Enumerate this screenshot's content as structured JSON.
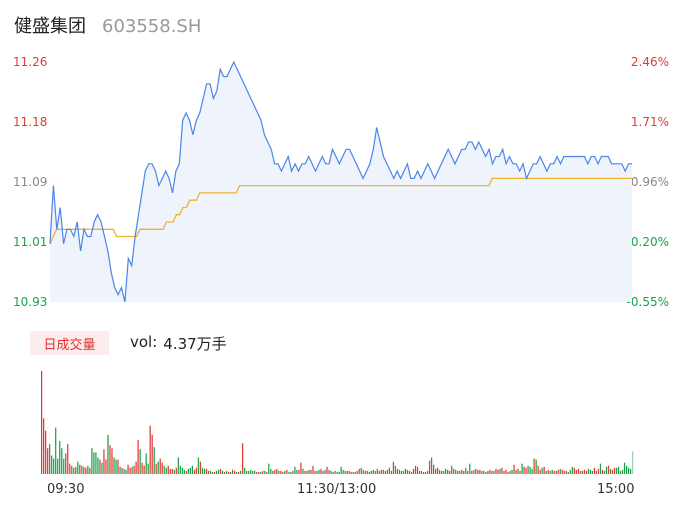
{
  "header": {
    "name": "健盛集团",
    "code": "603558.SH"
  },
  "chart_data": [
    {
      "type": "line",
      "y_ticks_left": [
        "11.26",
        "11.18",
        "11.09",
        "11.01",
        "10.93"
      ],
      "y_ticks_right": [
        "2.46%",
        "1.71%",
        "0.96%",
        "0.20%",
        "-0.55%"
      ],
      "ylim": [
        10.93,
        11.26
      ],
      "colors": {
        "price": "#4a86e8",
        "avg": "#f0b429",
        "up": "#e53935",
        "down": "#1aa34a",
        "fill": "#eef3fc"
      },
      "series": [
        {
          "values": [
            11.01,
            11.09,
            11.03,
            11.06,
            11.01,
            11.03,
            11.03,
            11.02,
            11.04,
            11.0,
            11.03,
            11.02,
            11.02,
            11.04,
            11.05,
            11.04,
            11.02,
            11.0,
            10.97,
            10.95,
            10.94,
            10.95,
            10.93,
            10.99,
            10.98,
            11.02,
            11.05,
            11.08,
            11.11,
            11.12,
            11.12,
            11.11,
            11.09,
            11.1,
            11.11,
            11.1,
            11.08,
            11.11,
            11.12,
            11.18,
            11.19,
            11.18,
            11.16,
            11.18,
            11.19,
            11.21,
            11.23,
            11.23,
            11.21,
            11.22,
            11.25,
            11.24,
            11.24,
            11.25,
            11.26,
            11.25,
            11.24,
            11.23,
            11.22,
            11.21,
            11.2,
            11.19,
            11.18,
            11.16,
            11.15,
            11.14,
            11.12,
            11.12,
            11.11,
            11.12,
            11.13,
            11.11,
            11.12,
            11.11,
            11.12,
            11.12,
            11.13,
            11.12,
            11.11,
            11.12,
            11.13,
            11.12,
            11.12,
            11.14,
            11.13,
            11.12,
            11.13,
            11.14,
            11.14,
            11.13,
            11.12,
            11.11,
            11.1,
            11.11,
            11.12,
            11.14,
            11.17,
            11.15,
            11.13,
            11.12,
            11.11,
            11.1,
            11.11,
            11.1,
            11.11,
            11.12,
            11.1,
            11.1,
            11.11,
            11.1,
            11.11,
            11.12,
            11.11,
            11.1,
            11.11,
            11.12,
            11.13,
            11.14,
            11.13,
            11.12,
            11.13,
            11.14,
            11.14,
            11.15,
            11.15,
            11.14,
            11.15,
            11.14,
            11.13,
            11.14,
            11.12,
            11.13,
            11.13,
            11.14,
            11.12,
            11.13,
            11.12,
            11.12,
            11.11,
            11.12,
            11.1,
            11.11,
            11.12,
            11.12,
            11.13,
            11.12,
            11.11,
            11.12,
            11.12,
            11.13,
            11.12,
            11.13,
            11.13,
            11.13,
            11.13,
            11.13,
            11.13,
            11.13,
            11.12,
            11.13,
            11.13,
            11.12,
            11.13,
            11.13,
            11.13,
            11.12,
            11.12,
            11.12,
            11.12,
            11.11,
            11.12,
            11.12
          ]
        },
        {
          "values": [
            11.01,
            11.02,
            11.03,
            11.03,
            11.03,
            11.03,
            11.03,
            11.03,
            11.03,
            11.03,
            11.03,
            11.03,
            11.03,
            11.03,
            11.03,
            11.03,
            11.03,
            11.03,
            11.03,
            11.03,
            11.02,
            11.02,
            11.02,
            11.02,
            11.02,
            11.02,
            11.02,
            11.03,
            11.03,
            11.03,
            11.03,
            11.03,
            11.03,
            11.03,
            11.03,
            11.04,
            11.04,
            11.04,
            11.05,
            11.05,
            11.06,
            11.06,
            11.07,
            11.07,
            11.07,
            11.08,
            11.08,
            11.08,
            11.08,
            11.08,
            11.08,
            11.08,
            11.08,
            11.08,
            11.08,
            11.08,
            11.08,
            11.09,
            11.09,
            11.09,
            11.09,
            11.09,
            11.09,
            11.09,
            11.09,
            11.09,
            11.09,
            11.09,
            11.09,
            11.09,
            11.09,
            11.09,
            11.09,
            11.09,
            11.09,
            11.09,
            11.09,
            11.09,
            11.09,
            11.09,
            11.09,
            11.09,
            11.09,
            11.09,
            11.09,
            11.09,
            11.09,
            11.09,
            11.09,
            11.09,
            11.09,
            11.09,
            11.09,
            11.09,
            11.09,
            11.09,
            11.09,
            11.09,
            11.09,
            11.09,
            11.09,
            11.09,
            11.09,
            11.09,
            11.09,
            11.09,
            11.09,
            11.09,
            11.09,
            11.09,
            11.09,
            11.09,
            11.09,
            11.09,
            11.09,
            11.09,
            11.09,
            11.09,
            11.09,
            11.09,
            11.09,
            11.09,
            11.09,
            11.09,
            11.09,
            11.09,
            11.09,
            11.09,
            11.09,
            11.09,
            11.09,
            11.09,
            11.09,
            11.1,
            11.1,
            11.1,
            11.1,
            11.1,
            11.1,
            11.1,
            11.1,
            11.1,
            11.1,
            11.1,
            11.1,
            11.1,
            11.1,
            11.1,
            11.1,
            11.1,
            11.1,
            11.1,
            11.1,
            11.1,
            11.1,
            11.1,
            11.1,
            11.1,
            11.1,
            11.1,
            11.1,
            11.1,
            11.1,
            11.1,
            11.1,
            11.1,
            11.1,
            11.1,
            11.1,
            11.1,
            11.1,
            11.1,
            11.1,
            11.1,
            11.1,
            11.1
          ]
        }
      ]
    },
    {
      "type": "bar",
      "badge": "日成交量",
      "vol_label": "vol:",
      "vol_value": "4.37万手",
      "x_ticks": [
        "09:30",
        "11:30/13:00",
        "15:00"
      ],
      "values": [
        100,
        54,
        42,
        25,
        29,
        18,
        15,
        45,
        15,
        32,
        25,
        15,
        20,
        29,
        10,
        8,
        6,
        7,
        12,
        9,
        8,
        7,
        6,
        8,
        6,
        25,
        21,
        21,
        16,
        14,
        11,
        24,
        14,
        38,
        28,
        25,
        16,
        14,
        14,
        7,
        6,
        5,
        4,
        9,
        6,
        7,
        8,
        12,
        33,
        24,
        11,
        8,
        20,
        10,
        47,
        38,
        26,
        10,
        12,
        15,
        11,
        8,
        6,
        8,
        5,
        5,
        4,
        6,
        16,
        8,
        6,
        4,
        3,
        5,
        6,
        8,
        4,
        6,
        16,
        12,
        6,
        5,
        5,
        3,
        3,
        2,
        2,
        3,
        4,
        5,
        3,
        2,
        3,
        2,
        2,
        4,
        3,
        2,
        2,
        3,
        30,
        6,
        3,
        3,
        4,
        3,
        3,
        2,
        2,
        2,
        3,
        3,
        2,
        10,
        5,
        3,
        4,
        5,
        3,
        3,
        2,
        3,
        4,
        2,
        2,
        3,
        7,
        4,
        4,
        11,
        5,
        3,
        3,
        4,
        4,
        8,
        3,
        3,
        4,
        5,
        3,
        4,
        7,
        4,
        3,
        2,
        3,
        2,
        2,
        7,
        4,
        3,
        3,
        3,
        2,
        2,
        2,
        3,
        5,
        6,
        4,
        3,
        3,
        2,
        3,
        4,
        3,
        5,
        3,
        4,
        4,
        3,
        4,
        6,
        3,
        12,
        8,
        5,
        4,
        3,
        3,
        5,
        4,
        3,
        2,
        5,
        8,
        7,
        3,
        3,
        2,
        2,
        3,
        13,
        16,
        9,
        5,
        6,
        4,
        3,
        3,
        5,
        4,
        3,
        8,
        5,
        4,
        3,
        3,
        4,
        3,
        6,
        3,
        10,
        3,
        4,
        5,
        4,
        4,
        3,
        3,
        2,
        3,
        4,
        3,
        3,
        5,
        4,
        5,
        6,
        3,
        4,
        2,
        3,
        4,
        9,
        4,
        5,
        3,
        10,
        7,
        6,
        8,
        7,
        5,
        15,
        14,
        8,
        4,
        6,
        7,
        3,
        4,
        3,
        4,
        3,
        3,
        4,
        5,
        4,
        3,
        3,
        2,
        4,
        7,
        6,
        4,
        5,
        3,
        3,
        4,
        3,
        5,
        4,
        3,
        6,
        3,
        5,
        10,
        4,
        3,
        7,
        8,
        5,
        4,
        6,
        6,
        7,
        3,
        4,
        11,
        8,
        6,
        5,
        22
      ],
      "up_flags": [
        1,
        1,
        1,
        1,
        0,
        0,
        0,
        0,
        0,
        0,
        0,
        0,
        1,
        1,
        1,
        0,
        1,
        0,
        0,
        1,
        0,
        1,
        1,
        0,
        1,
        0,
        0,
        0,
        0,
        1,
        0,
        1,
        1,
        0,
        1,
        1,
        0,
        0,
        1,
        0,
        1,
        0,
        0,
        1,
        1,
        0,
        1,
        1,
        1,
        0,
        1,
        1,
        0,
        0,
        1,
        1,
        0,
        1,
        0,
        1,
        1,
        0,
        0,
        1,
        1,
        1,
        0,
        1,
        0,
        0,
        0,
        0,
        1,
        0,
        0,
        0,
        1,
        1,
        0,
        1,
        0,
        0,
        1,
        1,
        0,
        0,
        1,
        0,
        0,
        1,
        0,
        1,
        0,
        1,
        0,
        1,
        1,
        0,
        1,
        0,
        1,
        0,
        0,
        0,
        0,
        0,
        0,
        1,
        1,
        0,
        1,
        0,
        1,
        0,
        0,
        0,
        1,
        1,
        0,
        1,
        1,
        0,
        1,
        0,
        0,
        1,
        0,
        0,
        1,
        1,
        0,
        1,
        1,
        0,
        1,
        1,
        1,
        0,
        0,
        1,
        1,
        0,
        1,
        1,
        0,
        0,
        1,
        0,
        0,
        0,
        0,
        0,
        1,
        1,
        1,
        1,
        0,
        1,
        1,
        0,
        0,
        1,
        1,
        0,
        1,
        0,
        0,
        1,
        1,
        0,
        1,
        1,
        1,
        0,
        0,
        1,
        0,
        1,
        0,
        0,
        0,
        1,
        0,
        1,
        0,
        1,
        1,
        1,
        1,
        0,
        0,
        0,
        1,
        1,
        0,
        1,
        0,
        1,
        0,
        0,
        0,
        0,
        1,
        1,
        0,
        1,
        0,
        0,
        0,
        1,
        1,
        0,
        1,
        0,
        1,
        0,
        1,
        1,
        1,
        0,
        1,
        0,
        0,
        1,
        1,
        0,
        1,
        1,
        0,
        1,
        1,
        1,
        1,
        0,
        0,
        1,
        1,
        0,
        1,
        0,
        1,
        1,
        0,
        0,
        0,
        1,
        0,
        1,
        1,
        0,
        1,
        0,
        1,
        0,
        0,
        1,
        1,
        1,
        0,
        1,
        1,
        1,
        0,
        0,
        0,
        1,
        1,
        1,
        0,
        1,
        1,
        1,
        0,
        0,
        0,
        1,
        1,
        1,
        0,
        1,
        0,
        0,
        1,
        0,
        1,
        1
      ]
    }
  ]
}
